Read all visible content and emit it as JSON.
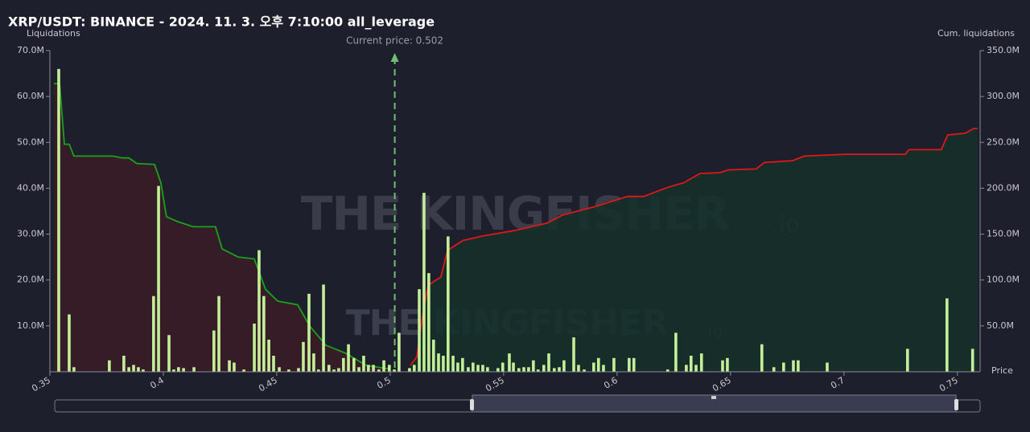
{
  "chart_data": {
    "type": "bar",
    "title": "XRP/USDT: BINANCE - 2024. 11. 3. 오후 7:10:00 all_leverage",
    "y_label": "Liquidations",
    "y2_label": "Cum. liquidations",
    "x_label": "Price",
    "watermark": "THE KINGFISHER",
    "watermark_suffix": ".io",
    "annotation": {
      "label": "Current price: 0.502",
      "value": 0.502
    },
    "color": "#c4ef98",
    "grid": false,
    "xlim": [
      0.35,
      0.76
    ],
    "xticks": [
      0.35,
      0.4,
      0.45,
      0.5,
      0.55,
      0.6,
      0.65,
      0.7,
      0.75
    ],
    "ylim": [
      0,
      70000000
    ],
    "yticks": [
      {
        "value": 10000000,
        "label": "10.0M"
      },
      {
        "value": 20000000,
        "label": "20.0M"
      },
      {
        "value": 30000000,
        "label": "30.0M"
      },
      {
        "value": 40000000,
        "label": "40.0M"
      },
      {
        "value": 50000000,
        "label": "50.0M"
      },
      {
        "value": 60000000,
        "label": "60.0M"
      },
      {
        "value": 70000000,
        "label": "70.0M"
      }
    ],
    "y2lim": [
      0,
      350000000
    ],
    "y2ticks": [
      {
        "value": 50000000,
        "label": "50.0M"
      },
      {
        "value": 100000000,
        "label": "100.0M"
      },
      {
        "value": 150000000,
        "label": "150.0M"
      },
      {
        "value": 200000000,
        "label": "200.0M"
      },
      {
        "value": 250000000,
        "label": "250.0M"
      },
      {
        "value": 300000000,
        "label": "300.0M"
      },
      {
        "value": 350000000,
        "label": "350.0M"
      }
    ],
    "x": [
      0.3539,
      0.3585,
      0.3606,
      0.3762,
      0.3826,
      0.3848,
      0.3869,
      0.389,
      0.3911,
      0.3957,
      0.3979,
      0.4025,
      0.4046,
      0.4067,
      0.4089,
      0.4135,
      0.4223,
      0.4245,
      0.4291,
      0.4312,
      0.4355,
      0.4401,
      0.4422,
      0.4443,
      0.4465,
      0.4486,
      0.4511,
      0.4553,
      0.4596,
      0.4617,
      0.4642,
      0.4663,
      0.4684,
      0.4706,
      0.473,
      0.4752,
      0.4773,
      0.4794,
      0.4816,
      0.484,
      0.4862,
      0.4883,
      0.4904,
      0.4926,
      0.495,
      0.4972,
      0.4996,
      0.5018,
      0.5039,
      0.5085,
      0.5106,
      0.5128,
      0.5149,
      0.517,
      0.5191,
      0.5213,
      0.5234,
      0.5255,
      0.5277,
      0.5298,
      0.5319,
      0.5344,
      0.5365,
      0.5387,
      0.5408,
      0.5429,
      0.5475,
      0.5496,
      0.5525,
      0.5543,
      0.5567,
      0.5589,
      0.561,
      0.5631,
      0.5652,
      0.5677,
      0.5699,
      0.5723,
      0.5745,
      0.5766,
      0.5809,
      0.583,
      0.5855,
      0.5897,
      0.5918,
      0.594,
      0.5986,
      0.6053,
      0.6074,
      0.6223,
      0.6259,
      0.6305,
      0.6326,
      0.6348,
      0.6372,
      0.6465,
      0.6486,
      0.6638,
      0.6691,
      0.6734,
      0.6777,
      0.6798,
      0.6926,
      0.728,
      0.7454,
      0.7567
    ],
    "values": [
      66000000,
      12500000,
      1000000,
      2500000,
      3500000,
      1000000,
      1500000,
      1000000,
      500000,
      16500000,
      40500000,
      8000000,
      500000,
      1000000,
      800000,
      1000000,
      9000000,
      16500000,
      2500000,
      2000000,
      500000,
      10500000,
      26500000,
      16500000,
      7000000,
      3500000,
      1000000,
      500000,
      800000,
      6500000,
      17000000,
      4000000,
      500000,
      19000000,
      1500000,
      500000,
      800000,
      3000000,
      6000000,
      3000000,
      1000000,
      3500000,
      1500000,
      1500000,
      500000,
      2500000,
      1500000,
      500000,
      8500000,
      800000,
      1500000,
      18000000,
      39000000,
      21500000,
      7000000,
      4000000,
      3500000,
      29500000,
      3500000,
      2000000,
      3000000,
      1000000,
      2000000,
      1500000,
      1500000,
      1000000,
      800000,
      2000000,
      4000000,
      2000000,
      800000,
      1000000,
      1000000,
      2500000,
      500000,
      1500000,
      4000000,
      800000,
      1000000,
      2500000,
      7500000,
      1500000,
      500000,
      2000000,
      3000000,
      1500000,
      3000000,
      3000000,
      3000000,
      500000,
      8500000,
      1500000,
      3500000,
      1500000,
      4000000,
      2500000,
      3000000,
      6000000,
      1000000,
      2000000,
      2500000,
      2500000,
      2000000,
      5000000,
      16000000,
      5000000
    ],
    "cumulative": [
      {
        "color": "#1aa31a",
        "fill": "#3a1c26",
        "axis": "y2",
        "x": [
          0.3518,
          0.3543,
          0.3564,
          0.3585,
          0.3606,
          0.3777,
          0.3819,
          0.3848,
          0.3883,
          0.3961,
          0.3989,
          0.4014,
          0.406,
          0.4131,
          0.423,
          0.4259,
          0.433,
          0.4401,
          0.445,
          0.4504,
          0.4592,
          0.4645,
          0.4716,
          0.4805,
          0.4894,
          0.5
        ],
        "values": [
          314000000,
          314000000,
          248000000,
          248000000,
          235000000,
          235000000,
          233000000,
          233000000,
          227000000,
          226000000,
          206000000,
          169000000,
          164000000,
          158000000,
          158000000,
          134000000,
          125000000,
          123000000,
          90000000,
          77000000,
          73000000,
          50000000,
          29000000,
          20000000,
          7000000,
          3000000
        ]
      },
      {
        "color": "#e01818",
        "fill": "#15302a",
        "axis": "y2",
        "x": [
          0.5089,
          0.5117,
          0.5142,
          0.5167,
          0.5195,
          0.5223,
          0.5252,
          0.5319,
          0.5408,
          0.555,
          0.5691,
          0.5762,
          0.5904,
          0.6046,
          0.6117,
          0.6223,
          0.6294,
          0.6365,
          0.6454,
          0.6489,
          0.6613,
          0.6649,
          0.6773,
          0.6826,
          0.7004,
          0.727,
          0.7287,
          0.7429,
          0.7457,
          0.7535,
          0.7571,
          0.7589
        ],
        "values": [
          7000000,
          16000000,
          60000000,
          94000000,
          99000000,
          103000000,
          132000000,
          143000000,
          148000000,
          154000000,
          162000000,
          171000000,
          180000000,
          191000000,
          191000000,
          201000000,
          206000000,
          216000000,
          217000000,
          220000000,
          221000000,
          228000000,
          230000000,
          235000000,
          237000000,
          237000000,
          242000000,
          242000000,
          258000000,
          260000000,
          265000000,
          265000000
        ]
      }
    ]
  }
}
